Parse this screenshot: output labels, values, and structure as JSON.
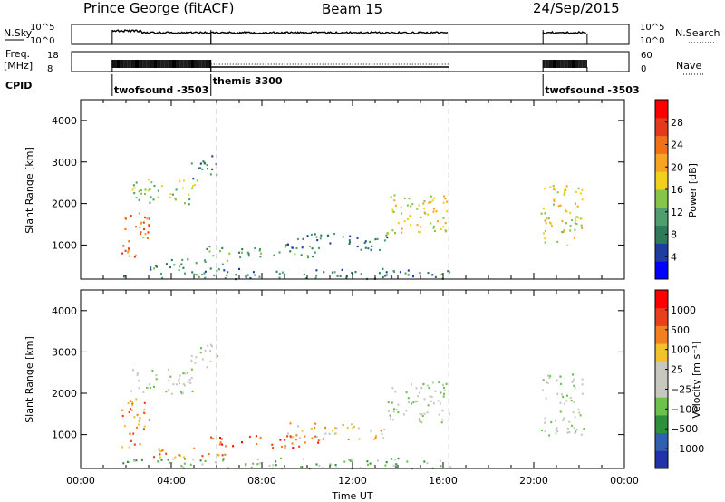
{
  "header": {
    "station": "Prince George (fitACF)",
    "beam": "Beam 15",
    "date": "24/Sep/2015"
  },
  "status_panels": {
    "nsky_label": "N.Sky",
    "nsky_ticks": [
      "10^5",
      "10^0"
    ],
    "nsearch_label": "N.Search",
    "nsearch_ticks": [
      "10^5",
      "10^0"
    ],
    "freq_label": "Freq.",
    "freq_unit": "[MHz]",
    "freq_ticks": [
      "18",
      "8"
    ],
    "nave_label": "Nave",
    "nave_ticks": [
      "60",
      "0"
    ],
    "cpid_label": "CPID",
    "cpid_segments": [
      {
        "name": "twofsound -3503",
        "start_h": 1.75,
        "end_h": 6.0
      },
      {
        "name": "themis 3300",
        "start_h": 6.0,
        "end_h": 16.25
      },
      {
        "name": "twofsound -3503",
        "start_h": 20.3,
        "end_h": 22.2
      }
    ]
  },
  "chart_data": [
    {
      "type": "heatmap",
      "name": "Power",
      "xlabel": "",
      "ylabel": "Slant Range [km]",
      "xlim": [
        0,
        24
      ],
      "ylim": [
        180,
        4500
      ],
      "yticks": [
        1000,
        2000,
        3000,
        4000
      ],
      "colorbar": {
        "label": "Power [dB]",
        "ticks": [
          "28",
          "24",
          "20",
          "16",
          "12",
          "8",
          "4"
        ],
        "colors": [
          "#0000ff",
          "#1f3ca0",
          "#2e7b5a",
          "#4e9e6e",
          "#86c54a",
          "#f2d11e",
          "#f5a523",
          "#f07218",
          "#e23a1b",
          "#ff0000"
        ]
      },
      "scatter_regions": [
        {
          "h0": 1.8,
          "h1": 16.3,
          "r0": 200,
          "r1": 450,
          "level": 2
        },
        {
          "h0": 1.8,
          "h1": 3.0,
          "r0": 700,
          "r1": 1900,
          "level": 7
        },
        {
          "h0": 3.0,
          "h1": 6.5,
          "r0": 450,
          "r1": 700,
          "level": 3
        },
        {
          "h0": 5.5,
          "h1": 10.5,
          "r0": 700,
          "r1": 1000,
          "level": 3
        },
        {
          "h0": 9.0,
          "h1": 13.5,
          "r0": 900,
          "r1": 1300,
          "level": 2
        },
        {
          "h0": 13.5,
          "h1": 16.3,
          "r0": 1300,
          "r1": 2300,
          "level": 5
        },
        {
          "h0": 2.2,
          "h1": 5.2,
          "r0": 2000,
          "r1": 2600,
          "level": 4
        },
        {
          "h0": 4.8,
          "h1": 6.0,
          "r0": 2600,
          "r1": 3200,
          "level": 2
        },
        {
          "h0": 20.3,
          "h1": 22.2,
          "r0": 1000,
          "r1": 2500,
          "level": 5
        }
      ]
    },
    {
      "type": "heatmap",
      "name": "Velocity",
      "xlabel": "Time UT",
      "ylabel": "Slant Range [km]",
      "xlim": [
        0,
        24
      ],
      "ylim": [
        180,
        4500
      ],
      "xticks": [
        "00:00",
        "04:00",
        "08:00",
        "12:00",
        "16:00",
        "20:00",
        "00:00"
      ],
      "yticks": [
        1000,
        2000,
        3000,
        4000
      ],
      "colorbar": {
        "label": "Velocity [m s⁻¹]",
        "ticks": [
          "1000",
          "500",
          "100",
          "25",
          "−25",
          "−100",
          "−500",
          "−1000"
        ],
        "colors": [
          "#2233aa",
          "#3060b0",
          "#2e8f3d",
          "#6cc24a",
          "#c8c8c0",
          "#c8c8c0",
          "#f2c12e",
          "#f08020",
          "#e8401b",
          "#ff0000"
        ]
      },
      "scatter_regions": [
        {
          "h0": 1.8,
          "h1": 16.3,
          "r0": 200,
          "r1": 450,
          "level": 3
        },
        {
          "h0": 1.8,
          "h1": 3.0,
          "r0": 700,
          "r1": 1900,
          "level": 7
        },
        {
          "h0": 3.0,
          "h1": 6.5,
          "r0": 450,
          "r1": 700,
          "level": 7
        },
        {
          "h0": 5.5,
          "h1": 10.5,
          "r0": 700,
          "r1": 1000,
          "level": 8
        },
        {
          "h0": 9.0,
          "h1": 13.5,
          "r0": 900,
          "r1": 1300,
          "level": 6
        },
        {
          "h0": 13.5,
          "h1": 16.3,
          "r0": 1300,
          "r1": 2300,
          "level": 4
        },
        {
          "h0": 2.2,
          "h1": 5.2,
          "r0": 2000,
          "r1": 2600,
          "level": 4
        },
        {
          "h0": 4.8,
          "h1": 6.0,
          "r0": 2600,
          "r1": 3200,
          "level": 4
        },
        {
          "h0": 20.3,
          "h1": 22.2,
          "r0": 1000,
          "r1": 2500,
          "level": 4
        }
      ]
    }
  ]
}
